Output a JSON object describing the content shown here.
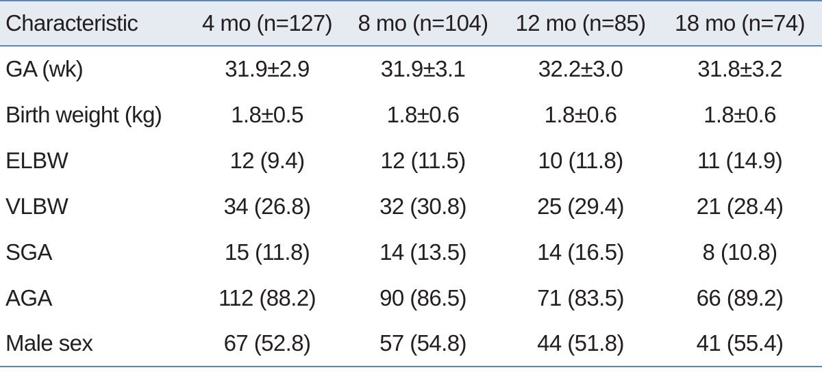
{
  "table": {
    "header": [
      "Characteristic",
      "4 mo (n=127)",
      "8 mo (n=104)",
      "12 mo (n=85)",
      "18 mo (n=74)"
    ],
    "rows": [
      [
        "GA (wk)",
        "31.9±2.9",
        "31.9±3.1",
        "32.2±3.0",
        "31.8±3.2"
      ],
      [
        "Birth weight (kg)",
        "1.8±0.5",
        "1.8±0.6",
        "1.8±0.6",
        "1.8±0.6"
      ],
      [
        "ELBW",
        "12 (9.4)",
        "12 (11.5)",
        "10 (11.8)",
        "11 (14.9)"
      ],
      [
        "VLBW",
        "34 (26.8)",
        "32 (30.8)",
        "25 (29.4)",
        "21 (28.4)"
      ],
      [
        "SGA",
        "15 (11.8)",
        "14 (13.5)",
        "14 (16.5)",
        "8 (10.8)"
      ],
      [
        "AGA",
        "112 (88.2)",
        "90 (86.5)",
        "71 (83.5)",
        "66 (89.2)"
      ],
      [
        "Male sex",
        "67 (52.8)",
        "57 (54.8)",
        "44 (51.8)",
        "41 (55.4)"
      ]
    ]
  }
}
